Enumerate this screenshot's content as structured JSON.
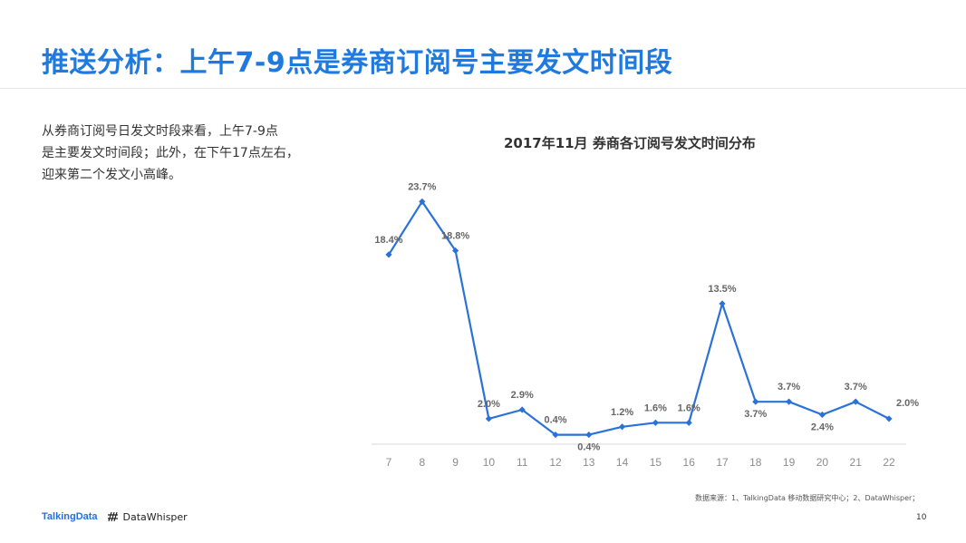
{
  "page": {
    "title": "推送分析：上午7-9点是券商订阅号主要发文时间段",
    "description": [
      "从券商订阅号日发文时段来看，上午7-9点",
      "是主要发文时间段；此外，在下午17点左右，",
      "迎来第二个发文小高峰。"
    ],
    "source": "数据来源：1、TalkingData 移动数据研究中心；2、DataWhisper；",
    "page_number": "10",
    "logos": {
      "talkingdata": "TalkingData",
      "datawhisper": "DataWhisper"
    }
  },
  "colors": {
    "title": "#1f7ae0",
    "line": "#2a72d9",
    "axis": "#d9d9d9",
    "tick": "#8c8c8c",
    "label": "#666666"
  },
  "chart_data": {
    "type": "line",
    "title": "2017年11月 券商各订阅号发文时间分布",
    "categories": [
      "7",
      "8",
      "9",
      "10",
      "11",
      "12",
      "13",
      "14",
      "15",
      "16",
      "17",
      "18",
      "19",
      "20",
      "21",
      "22"
    ],
    "values": [
      18.4,
      23.7,
      18.8,
      2.0,
      2.9,
      0.4,
      0.4,
      1.2,
      1.6,
      1.6,
      13.5,
      3.7,
      3.7,
      2.4,
      3.7,
      2.0
    ],
    "value_labels": [
      "18.4%",
      "23.7%",
      "18.8%",
      "2.0%",
      "2.9%",
      "0.4%",
      "0.4%",
      "1.2%",
      "1.6%",
      "1.6%",
      "13.5%",
      "3.7%",
      "3.7%",
      "2.4%",
      "3.7%",
      "2.0%"
    ],
    "label_positions": [
      "above",
      "above",
      "above",
      "above",
      "above",
      "above",
      "below",
      "above",
      "above",
      "above",
      "above",
      "below",
      "above",
      "below",
      "above",
      "right"
    ],
    "ylim": [
      0,
      25
    ],
    "grid": false,
    "legend": "none",
    "marker": "diamond"
  }
}
